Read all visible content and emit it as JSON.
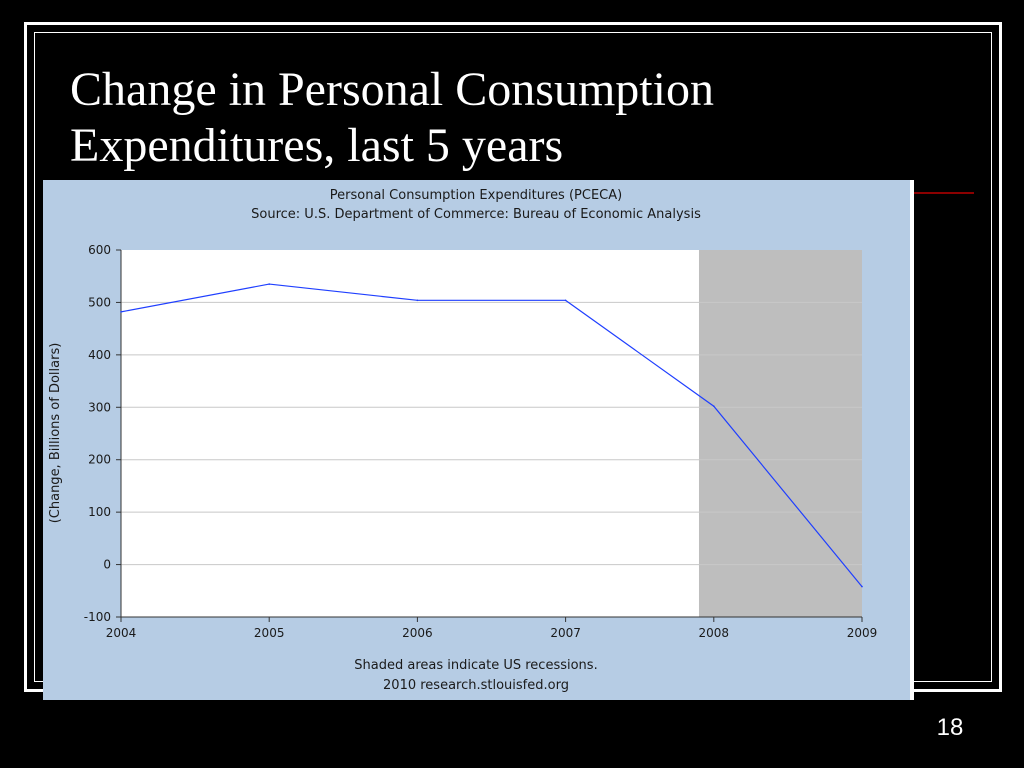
{
  "slide": {
    "title_lines": [
      "Change in Personal Consumption",
      "Expenditures, last 5 years"
    ],
    "page_number": "18"
  },
  "colors": {
    "background": "#000000",
    "frame": "#ffffff",
    "accent_rule": "#8b0000",
    "chart_panel": "#b6cce4",
    "plot_area": "#ffffff",
    "recession_shade": "#bebebe",
    "series_line": "#1f3fff",
    "gridline": "#c8c8c8"
  },
  "chart_data": {
    "type": "line",
    "title": "Personal Consumption Expenditures (PCECA)",
    "subtitle": "Source: U.S. Department of Commerce: Bureau of Economic Analysis",
    "ylabel": "(Change, Billions of Dollars)",
    "xlabel": "",
    "xlim": [
      2004,
      2009
    ],
    "ylim": [
      -100,
      600
    ],
    "x_ticks": [
      2004,
      2005,
      2006,
      2007,
      2008,
      2009
    ],
    "y_ticks": [
      -100,
      0,
      100,
      200,
      300,
      400,
      500,
      600
    ],
    "grid": true,
    "series": [
      {
        "x": [
          2004,
          2005,
          2006,
          2007,
          2008,
          2009
        ],
        "values": [
          482,
          535,
          504,
          504,
          302,
          -42
        ]
      }
    ],
    "recession_shading": [
      [
        2007.9,
        2009
      ]
    ],
    "footnotes": [
      "Shaded areas indicate US recessions.",
      "2010 research.stlouisfed.org"
    ]
  }
}
